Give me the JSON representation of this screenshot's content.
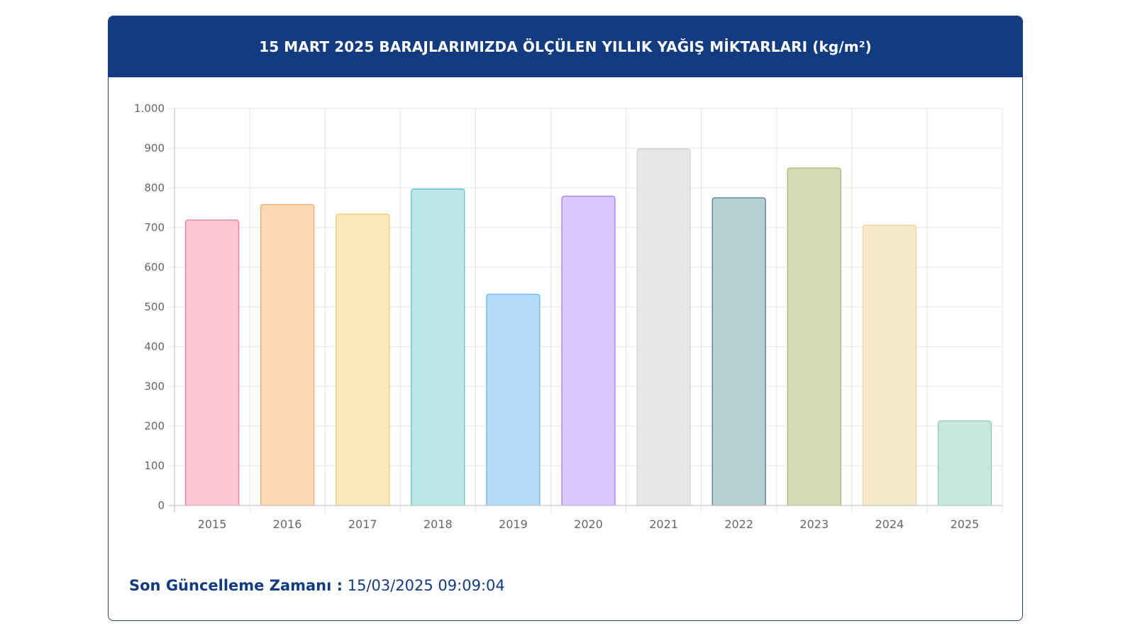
{
  "header": {
    "title": "15 MART 2025 BARAJLARIMIZDA ÖLÇÜLEN YILLIK YAĞIŞ MİKTARLARI (kg/m²)"
  },
  "footer": {
    "update_label": "Son Güncelleme Zamanı :",
    "update_value": "15/03/2025 09:09:04"
  },
  "chart_data": {
    "type": "bar",
    "categories": [
      "2015",
      "2016",
      "2017",
      "2018",
      "2019",
      "2020",
      "2021",
      "2022",
      "2023",
      "2024",
      "2025"
    ],
    "values": [
      719,
      758,
      734,
      797,
      532,
      779,
      898,
      775,
      850,
      706,
      213
    ],
    "ylim": [
      0,
      1000
    ],
    "yticks": [
      0,
      100,
      200,
      300,
      400,
      500,
      600,
      700,
      800,
      900,
      1000
    ],
    "ytick_labels": [
      "0",
      "100",
      "200",
      "300",
      "400",
      "500",
      "600",
      "700",
      "800",
      "900",
      "1.000"
    ],
    "grid": true,
    "legend": "none",
    "fill_colors": [
      "#fdc5d1",
      "#fed9b8",
      "#fee8be",
      "#bde8e7",
      "#b3dbf8",
      "#d8c7fb",
      "#e7e7e9",
      "#b5cfd3",
      "#d7dbb4",
      "#f7eacb",
      "#c8e7dc"
    ],
    "border_colors": [
      "#f07a95",
      "#f5a65f",
      "#f7cc6a",
      "#5cc5c2",
      "#6cb6ef",
      "#a77ef2",
      "#d2d2d6",
      "#4f7f87",
      "#a9b576",
      "#ecd39a",
      "#8fcfb7"
    ]
  }
}
